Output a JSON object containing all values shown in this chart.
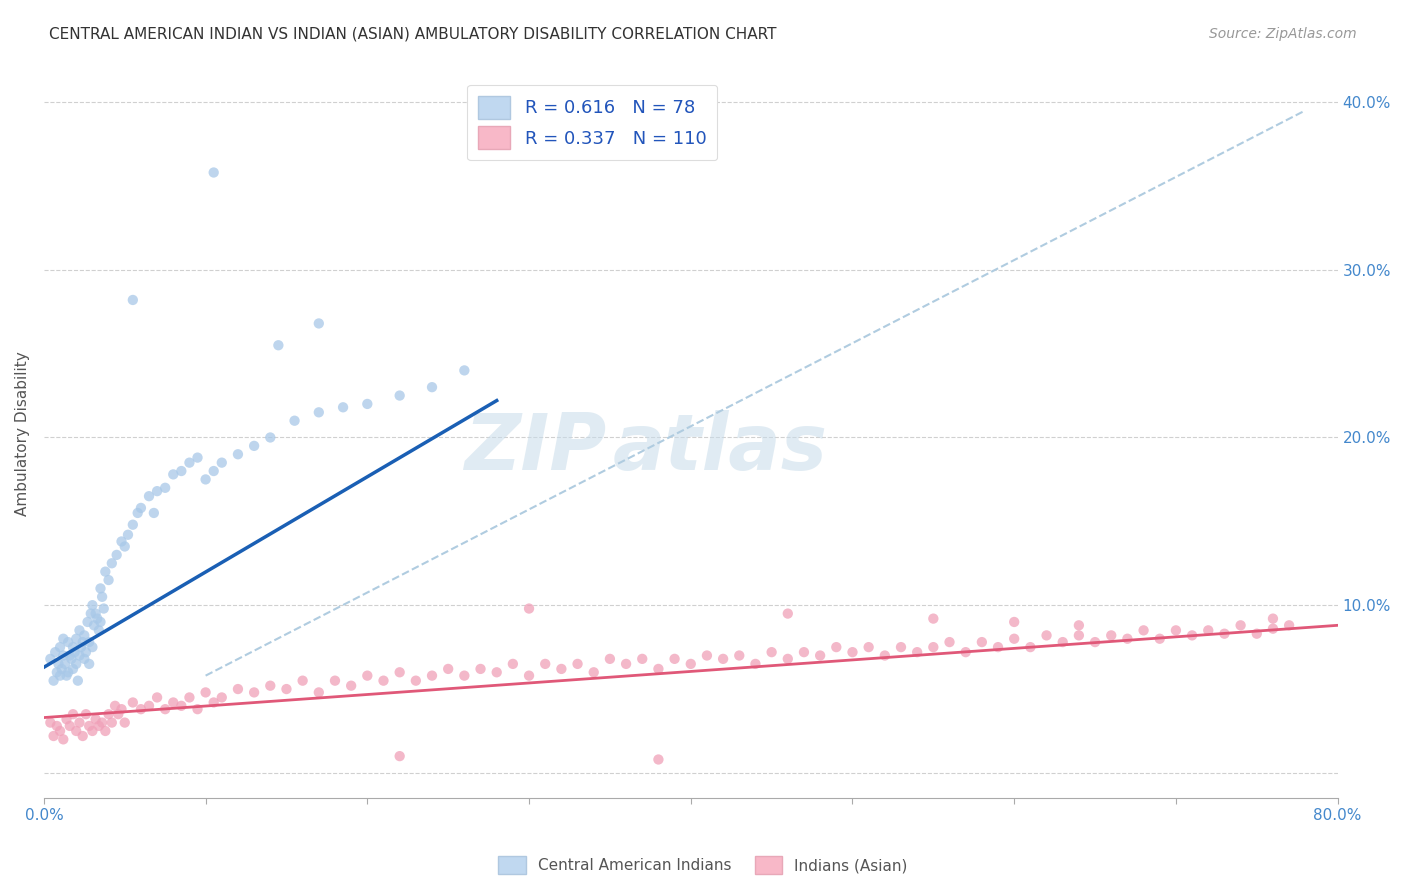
{
  "title": "CENTRAL AMERICAN INDIAN VS INDIAN (ASIAN) AMBULATORY DISABILITY CORRELATION CHART",
  "source": "Source: ZipAtlas.com",
  "ylabel": "Ambulatory Disability",
  "xlim": [
    0.0,
    0.8
  ],
  "ylim": [
    -0.015,
    0.42
  ],
  "xticks": [
    0.0,
    0.1,
    0.2,
    0.3,
    0.4,
    0.5,
    0.6,
    0.7,
    0.8
  ],
  "yticks": [
    0.0,
    0.1,
    0.2,
    0.3,
    0.4
  ],
  "blue_r": 0.616,
  "blue_n": 78,
  "pink_r": 0.337,
  "pink_n": 110,
  "blue_color": "#a8c8e8",
  "pink_color": "#f0a0b8",
  "blue_line_color": "#1a5fb4",
  "pink_line_color": "#e05878",
  "dashed_line_color": "#b0cce0",
  "watermark1": "ZIP",
  "watermark2": "atlas",
  "blue_line_x": [
    0.0,
    0.28
  ],
  "blue_line_y": [
    0.063,
    0.222
  ],
  "pink_line_x": [
    0.0,
    0.8
  ],
  "pink_line_y": [
    0.033,
    0.088
  ],
  "dash_line_x": [
    0.1,
    0.78
  ],
  "dash_line_y": [
    0.058,
    0.395
  ],
  "blue_scatter_x": [
    0.004,
    0.006,
    0.007,
    0.008,
    0.009,
    0.01,
    0.01,
    0.011,
    0.012,
    0.012,
    0.013,
    0.014,
    0.015,
    0.015,
    0.016,
    0.017,
    0.018,
    0.018,
    0.019,
    0.02,
    0.02,
    0.021,
    0.022,
    0.022,
    0.023,
    0.024,
    0.025,
    0.025,
    0.026,
    0.027,
    0.028,
    0.028,
    0.029,
    0.03,
    0.03,
    0.031,
    0.032,
    0.033,
    0.034,
    0.035,
    0.035,
    0.036,
    0.037,
    0.038,
    0.04,
    0.042,
    0.045,
    0.048,
    0.05,
    0.052,
    0.055,
    0.058,
    0.06,
    0.065,
    0.068,
    0.07,
    0.075,
    0.08,
    0.085,
    0.09,
    0.095,
    0.1,
    0.105,
    0.11,
    0.12,
    0.13,
    0.14,
    0.155,
    0.17,
    0.185,
    0.2,
    0.22,
    0.24,
    0.26,
    0.17,
    0.145,
    0.105,
    0.055
  ],
  "blue_scatter_y": [
    0.068,
    0.055,
    0.072,
    0.06,
    0.065,
    0.075,
    0.058,
    0.062,
    0.07,
    0.08,
    0.065,
    0.058,
    0.078,
    0.06,
    0.07,
    0.068,
    0.075,
    0.062,
    0.072,
    0.065,
    0.08,
    0.055,
    0.085,
    0.07,
    0.075,
    0.078,
    0.068,
    0.082,
    0.072,
    0.09,
    0.078,
    0.065,
    0.095,
    0.1,
    0.075,
    0.088,
    0.095,
    0.092,
    0.085,
    0.11,
    0.09,
    0.105,
    0.098,
    0.12,
    0.115,
    0.125,
    0.13,
    0.138,
    0.135,
    0.142,
    0.148,
    0.155,
    0.158,
    0.165,
    0.155,
    0.168,
    0.17,
    0.178,
    0.18,
    0.185,
    0.188,
    0.175,
    0.18,
    0.185,
    0.19,
    0.195,
    0.2,
    0.21,
    0.215,
    0.218,
    0.22,
    0.225,
    0.23,
    0.24,
    0.268,
    0.255,
    0.358,
    0.282
  ],
  "pink_scatter_x": [
    0.004,
    0.006,
    0.008,
    0.01,
    0.012,
    0.014,
    0.016,
    0.018,
    0.02,
    0.022,
    0.024,
    0.026,
    0.028,
    0.03,
    0.032,
    0.034,
    0.036,
    0.038,
    0.04,
    0.042,
    0.044,
    0.046,
    0.048,
    0.05,
    0.055,
    0.06,
    0.065,
    0.07,
    0.075,
    0.08,
    0.085,
    0.09,
    0.095,
    0.1,
    0.105,
    0.11,
    0.12,
    0.13,
    0.14,
    0.15,
    0.16,
    0.17,
    0.18,
    0.19,
    0.2,
    0.21,
    0.22,
    0.23,
    0.24,
    0.25,
    0.26,
    0.27,
    0.28,
    0.29,
    0.3,
    0.31,
    0.32,
    0.33,
    0.34,
    0.35,
    0.36,
    0.37,
    0.38,
    0.39,
    0.4,
    0.41,
    0.42,
    0.43,
    0.44,
    0.45,
    0.46,
    0.47,
    0.48,
    0.49,
    0.5,
    0.51,
    0.52,
    0.53,
    0.54,
    0.55,
    0.56,
    0.57,
    0.58,
    0.59,
    0.6,
    0.61,
    0.62,
    0.63,
    0.64,
    0.65,
    0.66,
    0.67,
    0.68,
    0.69,
    0.7,
    0.71,
    0.72,
    0.73,
    0.74,
    0.75,
    0.76,
    0.77,
    0.3,
    0.46,
    0.55,
    0.6,
    0.64,
    0.76,
    0.22,
    0.38
  ],
  "pink_scatter_y": [
    0.03,
    0.022,
    0.028,
    0.025,
    0.02,
    0.032,
    0.028,
    0.035,
    0.025,
    0.03,
    0.022,
    0.035,
    0.028,
    0.025,
    0.032,
    0.028,
    0.03,
    0.025,
    0.035,
    0.03,
    0.04,
    0.035,
    0.038,
    0.03,
    0.042,
    0.038,
    0.04,
    0.045,
    0.038,
    0.042,
    0.04,
    0.045,
    0.038,
    0.048,
    0.042,
    0.045,
    0.05,
    0.048,
    0.052,
    0.05,
    0.055,
    0.048,
    0.055,
    0.052,
    0.058,
    0.055,
    0.06,
    0.055,
    0.058,
    0.062,
    0.058,
    0.062,
    0.06,
    0.065,
    0.058,
    0.065,
    0.062,
    0.065,
    0.06,
    0.068,
    0.065,
    0.068,
    0.062,
    0.068,
    0.065,
    0.07,
    0.068,
    0.07,
    0.065,
    0.072,
    0.068,
    0.072,
    0.07,
    0.075,
    0.072,
    0.075,
    0.07,
    0.075,
    0.072,
    0.075,
    0.078,
    0.072,
    0.078,
    0.075,
    0.08,
    0.075,
    0.082,
    0.078,
    0.082,
    0.078,
    0.082,
    0.08,
    0.085,
    0.08,
    0.085,
    0.082,
    0.085,
    0.083,
    0.088,
    0.083,
    0.086,
    0.088,
    0.098,
    0.095,
    0.092,
    0.09,
    0.088,
    0.092,
    0.01,
    0.008
  ]
}
